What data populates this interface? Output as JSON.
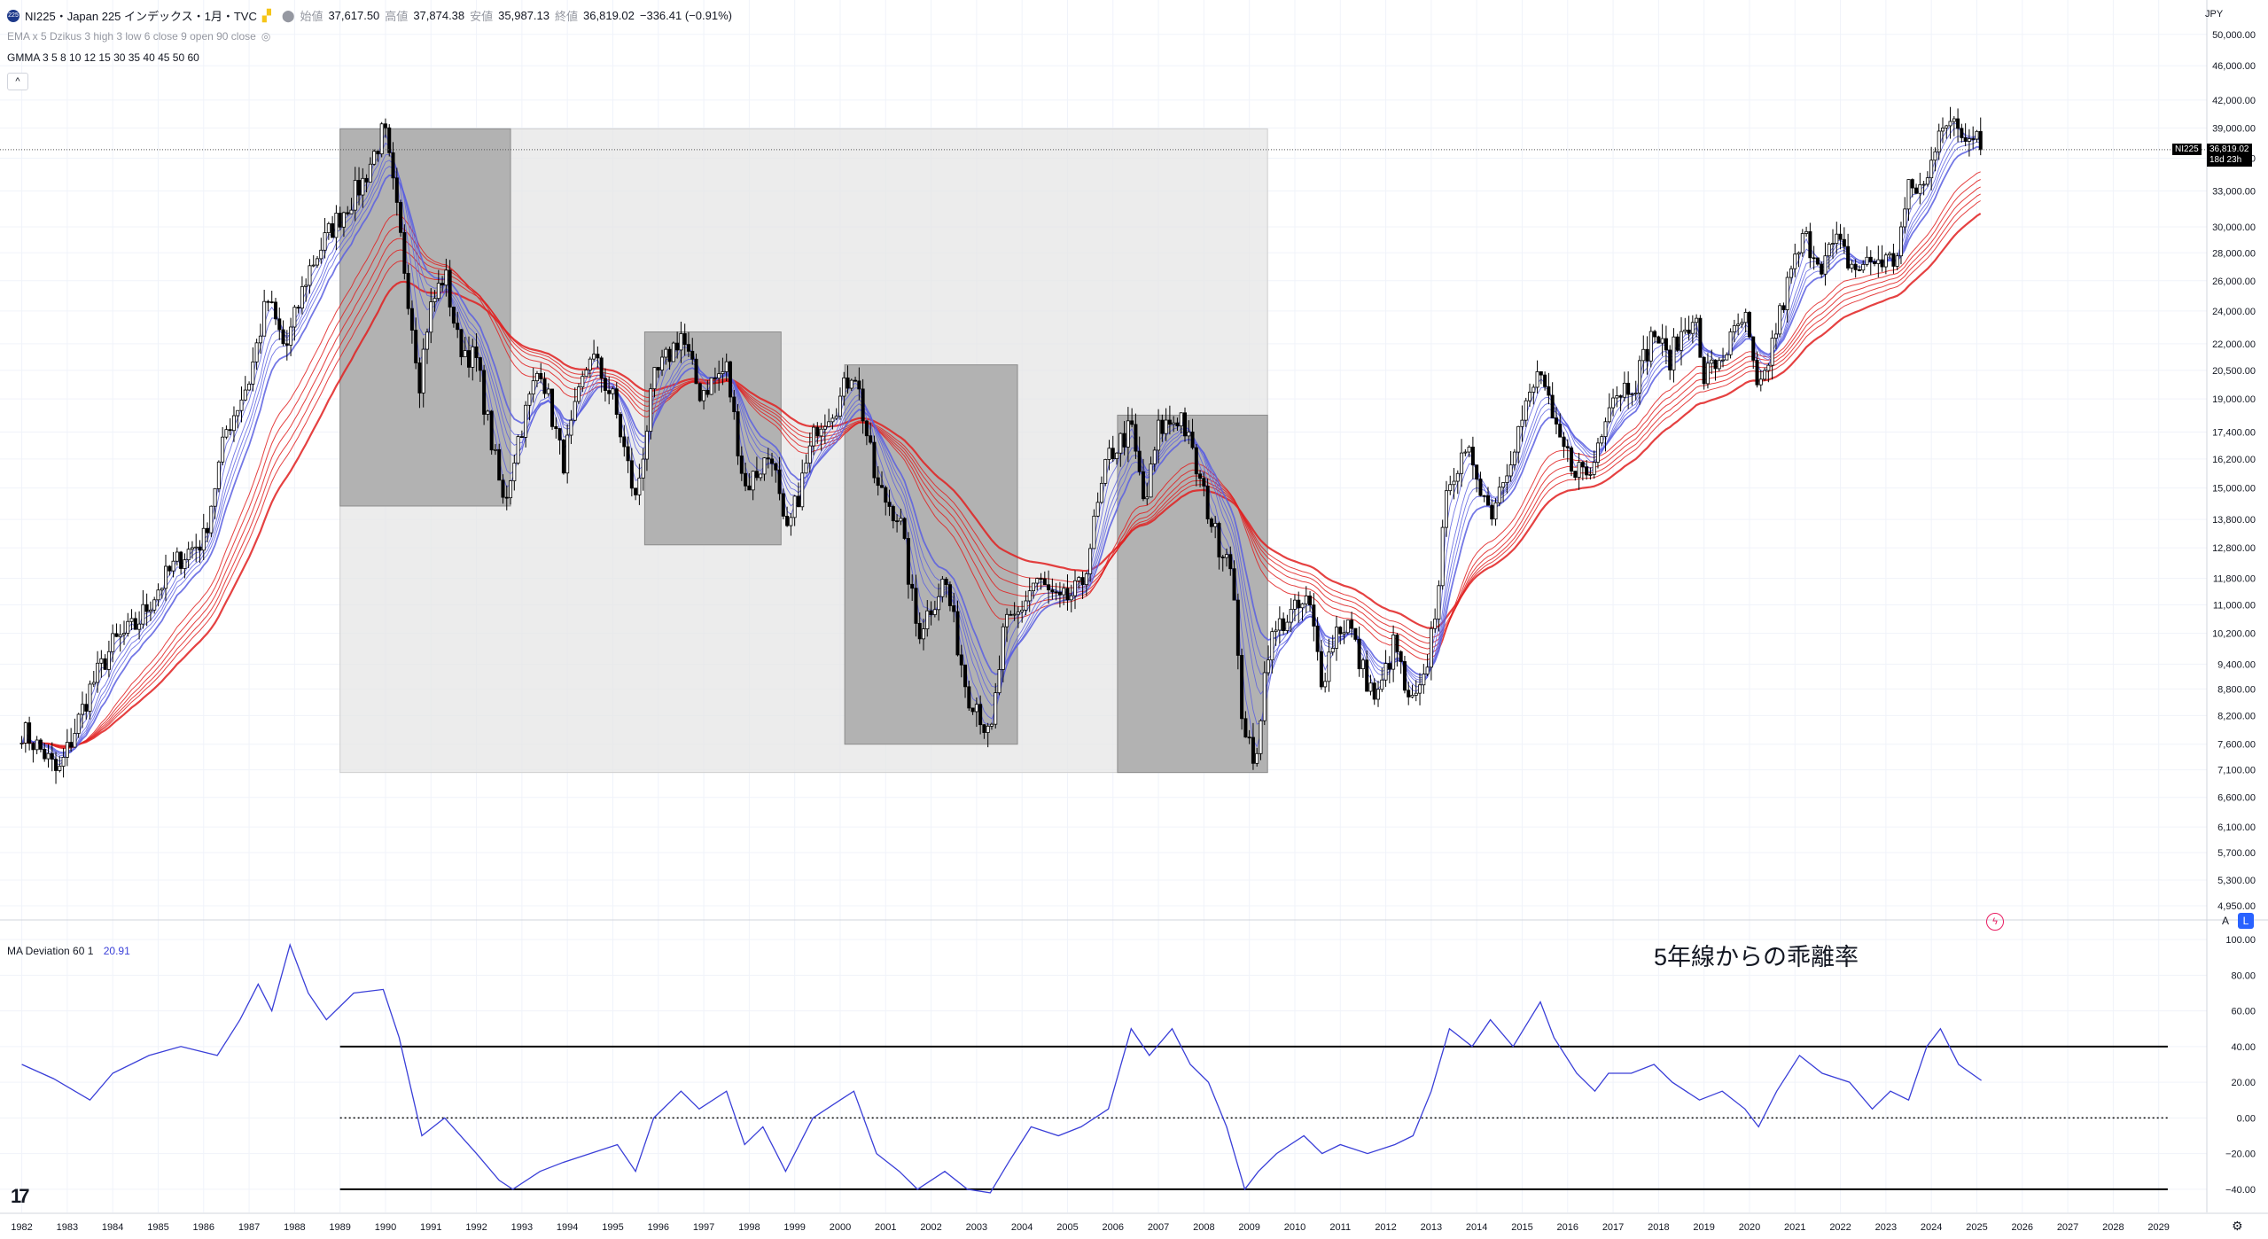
{
  "header": {
    "symbol_badge": "225",
    "title": "NI225・Japan 225 インデックス・1月・TVC",
    "o_label": "始値",
    "o_value": "37,617.50",
    "h_label": "高値",
    "h_value": "37,874.38",
    "l_label": "安値",
    "l_value": "35,987.13",
    "c_label": "終値",
    "c_value": "36,819.02",
    "change": "−336.41 (−0.91%)"
  },
  "indicators": {
    "ema_label": "EMA x 5 Dzikus 3 high 3 low 6 close 9 open 90 close",
    "gmma_label": "GMMA 3 5 8 10 12 15 30 35 40 45 50 60",
    "collapse": "^",
    "ma_dev_label": "MA Deviation 60 1",
    "ma_dev_value": "20.91"
  },
  "annotation": "5年線からの乖離率",
  "price_scale": {
    "currency": "JPY",
    "last_symbol": "NI225",
    "last_price": "36,819.02",
    "countdown": "18d 23h",
    "auto_btn": "A",
    "log_btn": "L"
  },
  "colors": {
    "candle": "#000000",
    "gmma_short": "#5a5fe0",
    "gmma_long": "#e02020",
    "box_light": "#e6e6e6",
    "box_dark": "#a8a8a8",
    "deviation_line": "#3a3fd8"
  },
  "chart_data": [
    {
      "type": "candlestick",
      "title": "NI225・Japan 225 インデックス・1月・TVC",
      "scale": "log",
      "ylim": [
        4950,
        53000
      ],
      "x_ticks": [
        "1982",
        "1983",
        "1984",
        "1985",
        "1986",
        "1987",
        "1988",
        "1989",
        "1990",
        "1991",
        "1992",
        "1993",
        "1994",
        "1995",
        "1996",
        "1997",
        "1998",
        "1999",
        "2000",
        "2001",
        "2002",
        "2003",
        "2004",
        "2005",
        "2006",
        "2007",
        "2008",
        "2009",
        "2010",
        "2011",
        "2012",
        "2013",
        "2014",
        "2015",
        "2016",
        "2017",
        "2018",
        "2019",
        "2020",
        "2021",
        "2022",
        "2023",
        "2024",
        "2025",
        "2026",
        "2027",
        "2028",
        "2029"
      ],
      "y_ticks": [
        "50,000.00",
        "46,000.00",
        "42,000.00",
        "39,000.00",
        "36,000.00",
        "33,000.00",
        "30,000.00",
        "28,000.00",
        "26,000.00",
        "24,000.00",
        "22,000.00",
        "20,500.00",
        "19,000.00",
        "17,400.00",
        "16,200.00",
        "15,000.00",
        "13,800.00",
        "12,800.00",
        "11,800.00",
        "11,000.00",
        "10,200.00",
        "9,400.00",
        "8,800.00",
        "8,200.00",
        "7,600.00",
        "7,100.00",
        "6,600.00",
        "6,100.00",
        "5,700.00",
        "5,300.00",
        "4,950.00"
      ],
      "close_path": [
        [
          1982.0,
          7900
        ],
        [
          1982.5,
          7400
        ],
        [
          1982.8,
          7000
        ],
        [
          1983.5,
          8800
        ],
        [
          1984.0,
          9900
        ],
        [
          1984.5,
          10400
        ],
        [
          1985.0,
          11500
        ],
        [
          1985.5,
          12500
        ],
        [
          1986.0,
          13100
        ],
        [
          1986.5,
          17500
        ],
        [
          1987.0,
          20000
        ],
        [
          1987.4,
          24800
        ],
        [
          1987.8,
          21600
        ],
        [
          1988.3,
          26700
        ],
        [
          1988.8,
          29800
        ],
        [
          1989.5,
          33800
        ],
        [
          1989.97,
          38915
        ],
        [
          1990.3,
          29900
        ],
        [
          1990.75,
          20000
        ],
        [
          1990.95,
          23800
        ],
        [
          1991.3,
          26600
        ],
        [
          1991.6,
          22000
        ],
        [
          1992.0,
          21000
        ],
        [
          1992.6,
          14300
        ],
        [
          1992.9,
          17000
        ],
        [
          1993.4,
          20900
        ],
        [
          1993.9,
          16000
        ],
        [
          1994.5,
          21500
        ],
        [
          1995.0,
          19000
        ],
        [
          1995.5,
          14500
        ],
        [
          1995.9,
          19900
        ],
        [
          1996.5,
          22600
        ],
        [
          1996.9,
          19300
        ],
        [
          1997.5,
          20600
        ],
        [
          1997.9,
          15000
        ],
        [
          1998.5,
          16500
        ],
        [
          1998.8,
          13000
        ],
        [
          1999.5,
          17800
        ],
        [
          2000.0,
          19000
        ],
        [
          2000.3,
          20800
        ],
        [
          2000.8,
          15000
        ],
        [
          2001.3,
          13900
        ],
        [
          2001.7,
          10200
        ],
        [
          2002.3,
          11800
        ],
        [
          2002.8,
          8700
        ],
        [
          2003.0,
          8500
        ],
        [
          2003.3,
          7600
        ],
        [
          2003.6,
          10300
        ],
        [
          2003.9,
          10700
        ],
        [
          2004.3,
          11800
        ],
        [
          2004.8,
          11000
        ],
        [
          2005.3,
          11500
        ],
        [
          2005.9,
          16300
        ],
        [
          2006.4,
          17600
        ],
        [
          2006.7,
          14200
        ],
        [
          2007.0,
          17500
        ],
        [
          2007.5,
          18200
        ],
        [
          2007.9,
          15300
        ],
        [
          2008.3,
          13000
        ],
        [
          2008.6,
          12500
        ],
        [
          2008.8,
          8500
        ],
        [
          2009.1,
          7050
        ],
        [
          2009.4,
          9800
        ],
        [
          2009.7,
          10500
        ],
        [
          2010.3,
          11100
        ],
        [
          2010.6,
          9000
        ],
        [
          2010.9,
          10300
        ],
        [
          2011.2,
          10500
        ],
        [
          2011.4,
          9500
        ],
        [
          2011.8,
          8500
        ],
        [
          2012.2,
          10000
        ],
        [
          2012.5,
          8400
        ],
        [
          2012.8,
          8700
        ],
        [
          2013.1,
          11000
        ],
        [
          2013.4,
          15600
        ],
        [
          2013.9,
          16300
        ],
        [
          2014.3,
          14000
        ],
        [
          2014.9,
          17400
        ],
        [
          2015.4,
          20600
        ],
        [
          2015.7,
          17400
        ],
        [
          2016.1,
          16000
        ],
        [
          2016.5,
          15500
        ],
        [
          2016.9,
          19100
        ],
        [
          2017.5,
          20000
        ],
        [
          2017.9,
          22800
        ],
        [
          2018.2,
          21000
        ],
        [
          2018.8,
          24100
        ],
        [
          2018.95,
          20000
        ],
        [
          2019.4,
          21300
        ],
        [
          2019.9,
          23600
        ],
        [
          2020.2,
          18900
        ],
        [
          2020.5,
          22000
        ],
        [
          2020.9,
          26400
        ],
        [
          2021.2,
          29200
        ],
        [
          2021.6,
          27300
        ],
        [
          2021.9,
          28800
        ],
        [
          2022.3,
          26800
        ],
        [
          2022.8,
          27500
        ],
        [
          2023.2,
          27400
        ],
        [
          2023.5,
          33000
        ],
        [
          2023.9,
          33500
        ],
        [
          2024.2,
          40300
        ],
        [
          2024.6,
          38500
        ],
        [
          2024.8,
          37900
        ],
        [
          2025.0,
          39600
        ],
        [
          2025.1,
          36819
        ]
      ],
      "overlays": [
        {
          "type": "rect",
          "label": "light range",
          "x": [
            1989.0,
            2009.4
          ],
          "y": [
            7050,
            38915
          ]
        },
        {
          "type": "rect",
          "label": "box 1",
          "x": [
            1989.0,
            1992.75
          ],
          "y": [
            14300,
            38915
          ]
        },
        {
          "type": "rect",
          "label": "box 2",
          "x": [
            1995.7,
            1998.7
          ],
          "y": [
            12900,
            22700
          ]
        },
        {
          "type": "rect",
          "label": "box 3",
          "x": [
            2000.1,
            2003.9
          ],
          "y": [
            7600,
            20800
          ]
        },
        {
          "type": "rect",
          "label": "box 4",
          "x": [
            2006.1,
            2009.4
          ],
          "y": [
            7050,
            18200
          ]
        }
      ],
      "last_price": 36819.02
    },
    {
      "type": "line",
      "title": "MA Deviation 60 1",
      "ylim": [
        -50,
        105
      ],
      "y_ticks": [
        "100.00",
        "80.00",
        "60.00",
        "40.00",
        "20.00",
        "0.00",
        "−20.00",
        "−40.00"
      ],
      "ref_lines": [
        40,
        0,
        -40
      ],
      "x": [
        1982.0,
        1982.7,
        1983.5,
        1984.0,
        1984.8,
        1985.5,
        1986.3,
        1986.8,
        1987.2,
        1987.5,
        1987.9,
        1988.3,
        1988.7,
        1989.3,
        1989.95,
        1990.3,
        1990.8,
        1991.3,
        1992.0,
        1992.5,
        1992.8,
        1993.4,
        1993.9,
        1994.5,
        1995.1,
        1995.5,
        1995.9,
        1996.5,
        1996.9,
        1997.5,
        1997.9,
        1998.3,
        1998.8,
        1999.4,
        2000.0,
        2000.3,
        2000.8,
        2001.3,
        2001.7,
        2002.3,
        2002.8,
        2003.3,
        2003.7,
        2004.2,
        2004.8,
        2005.3,
        2005.9,
        2006.4,
        2006.8,
        2007.3,
        2007.7,
        2008.1,
        2008.5,
        2008.9,
        2009.2,
        2009.6,
        2010.2,
        2010.6,
        2011.0,
        2011.6,
        2012.2,
        2012.6,
        2013.0,
        2013.4,
        2013.9,
        2014.3,
        2014.8,
        2015.4,
        2015.7,
        2016.2,
        2016.6,
        2016.9,
        2017.4,
        2017.9,
        2018.3,
        2018.9,
        2019.4,
        2019.9,
        2020.2,
        2020.6,
        2021.1,
        2021.6,
        2022.2,
        2022.7,
        2023.1,
        2023.5,
        2023.9,
        2024.2,
        2024.6,
        2025.1
      ],
      "values": [
        30,
        22,
        10,
        25,
        35,
        40,
        35,
        55,
        75,
        60,
        97,
        70,
        55,
        70,
        72,
        45,
        -10,
        0,
        -20,
        -35,
        -40,
        -30,
        -25,
        -20,
        -15,
        -30,
        0,
        15,
        5,
        15,
        -15,
        -5,
        -30,
        0,
        10,
        15,
        -20,
        -30,
        -40,
        -30,
        -40,
        -42,
        -25,
        -5,
        -10,
        -5,
        5,
        50,
        35,
        50,
        30,
        20,
        -5,
        -40,
        -30,
        -20,
        -10,
        -20,
        -15,
        -20,
        -15,
        -10,
        15,
        50,
        40,
        55,
        40,
        65,
        45,
        25,
        15,
        25,
        25,
        30,
        20,
        10,
        15,
        5,
        -5,
        15,
        35,
        25,
        20,
        5,
        15,
        10,
        40,
        50,
        30,
        21
      ]
    }
  ]
}
